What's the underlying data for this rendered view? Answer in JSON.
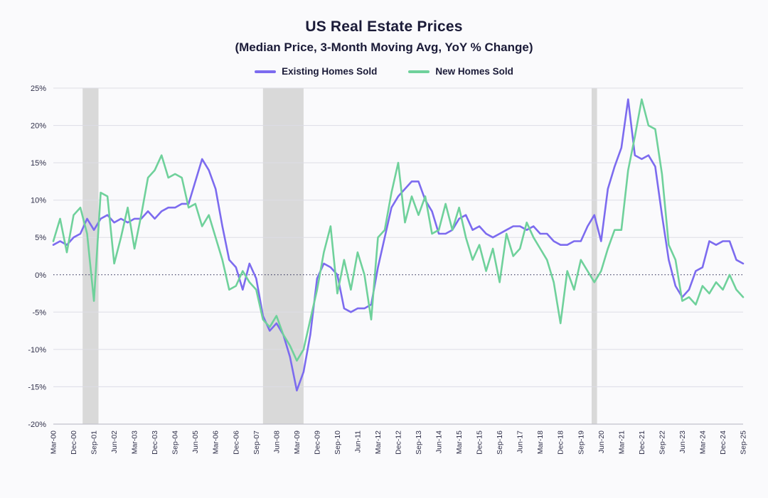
{
  "chart_data": {
    "type": "line",
    "title": "US Real Estate Prices",
    "subtitle": "(Median Price, 3-Month Moving Avg, YoY % Change)",
    "xlabel": "",
    "ylabel": "YoY % Change",
    "ylim": [
      -20,
      25
    ],
    "y_ticks": [
      25,
      20,
      15,
      10,
      5,
      0,
      -5,
      -10,
      -15,
      -20
    ],
    "y_tick_suffix": "%",
    "x_tick_every": 3,
    "grid_color": "#dddde5",
    "axis_color": "#c2c2cc",
    "band_color": "#d9d9d9",
    "zero_line": {
      "at": 0,
      "color": "#23234f",
      "style": "dotted"
    },
    "recession_bands": [
      {
        "from": 4.33,
        "to": 6.67
      },
      {
        "from": 31,
        "to": 37
      },
      {
        "from": 79.6,
        "to": 80.4
      }
    ],
    "x": [
      "Mar-00",
      "Jun-00",
      "Sep-00",
      "Dec-00",
      "Mar-01",
      "Jun-01",
      "Sep-01",
      "Dec-01",
      "Mar-02",
      "Jun-02",
      "Sep-02",
      "Dec-02",
      "Mar-03",
      "Jun-03",
      "Sep-03",
      "Dec-03",
      "Mar-04",
      "Jun-04",
      "Sep-04",
      "Dec-04",
      "Mar-05",
      "Jun-05",
      "Sep-05",
      "Dec-05",
      "Mar-06",
      "Jun-06",
      "Sep-06",
      "Dec-06",
      "Mar-07",
      "Jun-07",
      "Sep-07",
      "Dec-07",
      "Mar-08",
      "Jun-08",
      "Sep-08",
      "Dec-08",
      "Mar-09",
      "Jun-09",
      "Sep-09",
      "Dec-09",
      "Mar-10",
      "Jun-10",
      "Sep-10",
      "Dec-10",
      "Mar-11",
      "Jun-11",
      "Sep-11",
      "Dec-11",
      "Mar-12",
      "Jun-12",
      "Sep-12",
      "Dec-12",
      "Mar-13",
      "Jun-13",
      "Sep-13",
      "Dec-13",
      "Mar-14",
      "Jun-14",
      "Sep-14",
      "Dec-14",
      "Mar-15",
      "Jun-15",
      "Sep-15",
      "Dec-15",
      "Mar-16",
      "Jun-16",
      "Sep-16",
      "Dec-16",
      "Mar-17",
      "Jun-17",
      "Sep-17",
      "Dec-17",
      "Mar-18",
      "Jun-18",
      "Sep-18",
      "Dec-18",
      "Mar-19",
      "Jun-19",
      "Sep-19",
      "Dec-19",
      "Mar-20",
      "Jun-20",
      "Sep-20",
      "Dec-20",
      "Mar-21",
      "Jun-21",
      "Sep-21",
      "Dec-21",
      "Mar-22",
      "Jun-22",
      "Sep-22",
      "Dec-22",
      "Mar-23",
      "Jun-23",
      "Sep-23",
      "Dec-23",
      "Mar-24",
      "Jun-24",
      "Sep-24",
      "Dec-24",
      "Mar-25",
      "Jun-25",
      "Sep-25"
    ],
    "series": [
      {
        "name": "Existing Homes Sold",
        "color": "#7c6bef",
        "values": [
          4.0,
          4.5,
          4.0,
          5.0,
          5.5,
          7.5,
          6.0,
          7.5,
          8.0,
          7.0,
          7.5,
          7.0,
          7.5,
          7.5,
          8.5,
          7.5,
          8.5,
          9.0,
          9.0,
          9.5,
          9.5,
          12.5,
          15.5,
          14.0,
          11.5,
          6.5,
          2.0,
          1.0,
          -2.0,
          1.5,
          -0.5,
          -5.5,
          -7.5,
          -6.5,
          -8.0,
          -11.0,
          -15.5,
          -13.0,
          -8.0,
          -0.5,
          1.5,
          1.0,
          0.0,
          -4.5,
          -5.0,
          -4.5,
          -4.5,
          -4.0,
          1.0,
          5.0,
          9.0,
          10.5,
          11.5,
          12.5,
          12.5,
          10.0,
          8.5,
          5.5,
          5.5,
          6.0,
          7.5,
          8.0,
          6.0,
          6.5,
          5.5,
          5.0,
          5.5,
          6.0,
          6.5,
          6.5,
          6.0,
          6.5,
          5.5,
          5.5,
          4.5,
          4.0,
          4.0,
          4.5,
          4.5,
          6.5,
          8.0,
          4.5,
          11.5,
          14.5,
          17.0,
          23.5,
          16.0,
          15.5,
          16.0,
          14.5,
          8.0,
          2.0,
          -1.5,
          -3.0,
          -2.0,
          0.5,
          1.0,
          4.5,
          4.0,
          4.5,
          4.5,
          2.0,
          1.5
        ]
      },
      {
        "name": "New Homes Sold",
        "color": "#6fd19b",
        "values": [
          4.5,
          7.5,
          3.0,
          8.0,
          9.0,
          5.5,
          -3.5,
          11.0,
          10.5,
          1.5,
          5.0,
          9.0,
          3.5,
          8.0,
          13.0,
          14.0,
          16.0,
          13.0,
          13.5,
          13.0,
          9.0,
          9.5,
          6.5,
          8.0,
          5.0,
          2.0,
          -2.0,
          -1.5,
          0.5,
          -1.0,
          -2.0,
          -6.0,
          -7.0,
          -5.5,
          -8.0,
          -9.5,
          -11.5,
          -10.0,
          -6.0,
          -2.0,
          3.0,
          6.5,
          -2.5,
          2.0,
          -2.0,
          3.0,
          0.0,
          -6.0,
          5.0,
          6.0,
          11.0,
          15.0,
          7.0,
          10.5,
          8.0,
          10.5,
          5.5,
          6.0,
          9.5,
          6.0,
          9.0,
          5.0,
          2.0,
          4.0,
          0.5,
          3.5,
          -1.0,
          5.5,
          2.5,
          3.5,
          7.0,
          5.0,
          3.5,
          2.0,
          -1.0,
          -6.5,
          0.5,
          -2.0,
          2.0,
          0.5,
          -1.0,
          0.5,
          3.5,
          6.0,
          6.0,
          14.0,
          18.5,
          23.5,
          20.0,
          19.5,
          13.5,
          4.0,
          2.0,
          -3.5,
          -3.0,
          -4.0,
          -1.5,
          -2.5,
          -1.0,
          -2.0,
          0.0,
          -2.0,
          -3.0
        ]
      }
    ]
  }
}
